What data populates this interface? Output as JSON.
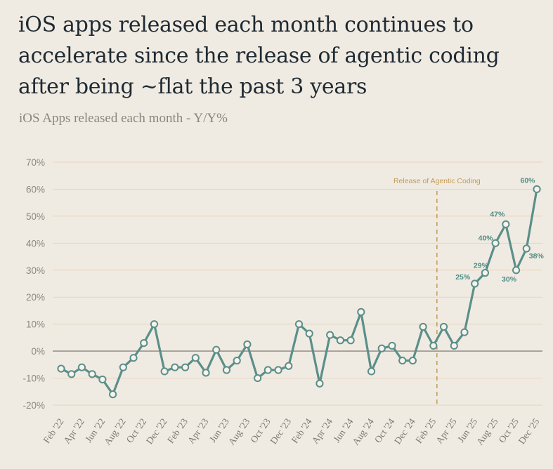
{
  "chart_data": {
    "type": "line",
    "title": "iOS apps released each month continues to accelerate since the release of agentic coding after being ~flat the past 3 years",
    "subtitle": "iOS Apps released each month - Y/Y%",
    "xlabel": "",
    "ylabel": "",
    "ylim": [
      -20,
      70
    ],
    "yticks": [
      -20,
      -10,
      0,
      10,
      20,
      30,
      40,
      50,
      60,
      70
    ],
    "ytick_labels": [
      "-20%",
      "-10%",
      "0%",
      "10%",
      "20%",
      "30%",
      "40%",
      "50%",
      "60%",
      "70%"
    ],
    "x_tick_labels": [
      "Feb '22",
      "Apr '22",
      "Jun '22",
      "Aug '22",
      "Oct '22",
      "Dec '22",
      "Feb '23",
      "Apr '23",
      "Jun '23",
      "Aug '23",
      "Oct '23",
      "Dec '23",
      "Feb '24",
      "Apr '24",
      "Jun '24",
      "Aug '24",
      "Oct '24",
      "Dec '24",
      "Feb '25",
      "Apr '25",
      "Jun '25",
      "Aug '25",
      "Oct '25",
      "Dec '25"
    ],
    "series": [
      {
        "name": "iOS Apps released each month - Y/Y%",
        "color": "#5b8f8a",
        "values": [
          -6.5,
          -8.5,
          -6,
          -8.5,
          -10.5,
          -16,
          -6,
          -2.5,
          3,
          10,
          -7.5,
          -6,
          -6,
          -2.5,
          -8,
          0.5,
          -7,
          -3.5,
          2.5,
          -10,
          -7,
          -7,
          -5.5,
          10,
          6.5,
          -12,
          6,
          4,
          4,
          14.5,
          -7.5,
          1,
          2,
          -3.5,
          -3.5,
          9,
          2,
          9,
          2,
          7,
          25,
          29,
          40,
          47,
          30,
          38,
          60
        ]
      }
    ],
    "data_labels": [
      {
        "index": 40,
        "text": "25%"
      },
      {
        "index": 41,
        "text": "29%"
      },
      {
        "index": 42,
        "text": "40%"
      },
      {
        "index": 43,
        "text": "47%"
      },
      {
        "index": 44,
        "text": "30%"
      },
      {
        "index": 45,
        "text": "38%"
      },
      {
        "index": 46,
        "text": "60%"
      }
    ],
    "annotations": [
      {
        "text": "Release of Agentic Coding",
        "x_index": 36,
        "style": "dashed-vertical"
      }
    ],
    "grid": true,
    "colors": {
      "background": "#f0ebe2",
      "line": "#5b8f8a",
      "gridline": "#e6d3bd",
      "zero_line": "#9a948e",
      "annotation": "#c29a55"
    }
  }
}
